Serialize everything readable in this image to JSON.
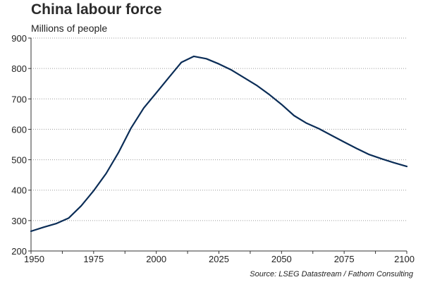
{
  "chart_data": {
    "type": "line",
    "title": "China labour force",
    "subtitle": "Millions of people",
    "source": "Source: LSEG Datastream / Fathom Consulting",
    "xlabel": "",
    "ylabel": "",
    "xlim": [
      1950,
      2100
    ],
    "ylim": [
      200,
      900
    ],
    "x_ticks": [
      1950,
      1975,
      2000,
      2025,
      2050,
      2075,
      2100
    ],
    "y_ticks": [
      200,
      300,
      400,
      500,
      600,
      700,
      800,
      900
    ],
    "grid": "horizontal-dotted",
    "legend": "none",
    "series": [
      {
        "color": "#0b2d57",
        "x": [
          1950,
          1955,
          1960,
          1965,
          1970,
          1975,
          1980,
          1985,
          1990,
          1995,
          2000,
          2005,
          2010,
          2015,
          2020,
          2025,
          2030,
          2035,
          2040,
          2045,
          2050,
          2055,
          2060,
          2065,
          2070,
          2075,
          2080,
          2085,
          2090,
          2095,
          2100
        ],
        "y": [
          265,
          278,
          290,
          308,
          348,
          398,
          455,
          525,
          605,
          670,
          720,
          770,
          820,
          840,
          832,
          815,
          795,
          770,
          745,
          715,
          682,
          645,
          620,
          602,
          580,
          558,
          537,
          517,
          503,
          490,
          478
        ]
      }
    ]
  }
}
